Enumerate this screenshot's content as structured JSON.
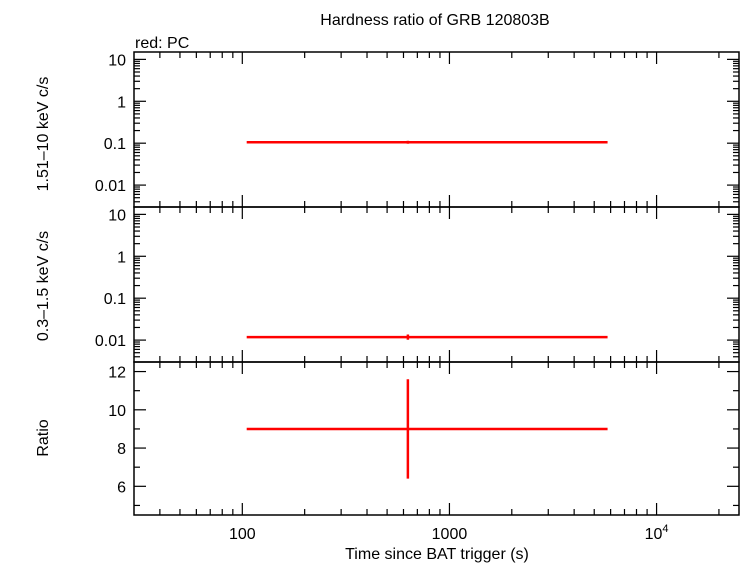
{
  "chart_data": {
    "type": "scatter",
    "title": "Hardness ratio of GRB 120803B",
    "legend_text": "red: PC",
    "xlabel": "Time since BAT trigger (s)",
    "x_scale": "log",
    "xlim": [
      30,
      25000
    ],
    "x_ticks": [
      {
        "value": 100,
        "label": "100"
      },
      {
        "value": 1000,
        "label": "1000"
      },
      {
        "value": 10000,
        "label": "10",
        "exp": "4"
      }
    ],
    "colors": {
      "series": "#ff0000",
      "axis": "#000000"
    },
    "panels": [
      {
        "id": "hard",
        "ylabel": "1.51–10 keV c/s",
        "y_scale": "log",
        "ylim": [
          0.003,
          15
        ],
        "y_ticks": [
          {
            "value": 10,
            "label": "10"
          },
          {
            "value": 1,
            "label": "1"
          },
          {
            "value": 0.1,
            "label": "0.1"
          },
          {
            "value": 0.01,
            "label": "0.01"
          }
        ],
        "points": [
          {
            "x": 630,
            "x_lo": 105,
            "x_hi": 5800,
            "y": 0.105,
            "y_lo": 0.097,
            "y_hi": 0.114
          }
        ]
      },
      {
        "id": "soft",
        "ylabel": "0.3–1.5 keV c/s",
        "y_scale": "log",
        "ylim": [
          0.003,
          15
        ],
        "y_ticks": [
          {
            "value": 10,
            "label": "10"
          },
          {
            "value": 1,
            "label": "1"
          },
          {
            "value": 0.1,
            "label": "0.1"
          },
          {
            "value": 0.01,
            "label": "0.01"
          }
        ],
        "points": [
          {
            "x": 630,
            "x_lo": 105,
            "x_hi": 5800,
            "y": 0.0118,
            "y_lo": 0.0102,
            "y_hi": 0.0136
          }
        ]
      },
      {
        "id": "ratio",
        "ylabel": "Ratio",
        "y_scale": "linear",
        "ylim": [
          4.5,
          12.5
        ],
        "y_ticks": [
          {
            "value": 12,
            "label": "12"
          },
          {
            "value": 10,
            "label": "10"
          },
          {
            "value": 8,
            "label": "8"
          },
          {
            "value": 6,
            "label": "6"
          }
        ],
        "points": [
          {
            "x": 630,
            "x_lo": 105,
            "x_hi": 5800,
            "y": 9.0,
            "y_lo": 6.4,
            "y_hi": 11.6
          }
        ]
      }
    ]
  }
}
